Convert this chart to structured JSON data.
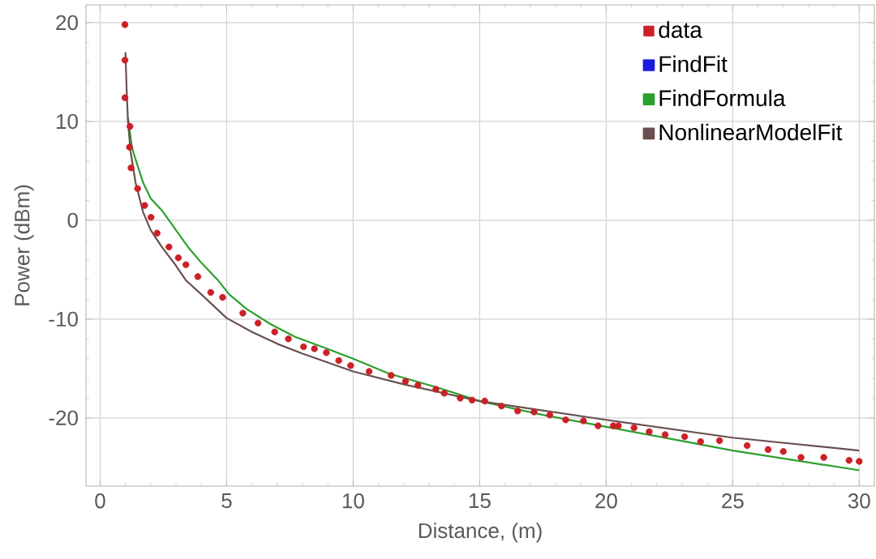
{
  "chart_data": {
    "type": "scatter",
    "xlabel": "Distance, (m)",
    "ylabel": "Power (dBm)",
    "xlim": [
      -0.56,
      30.6
    ],
    "ylim": [
      -26.9,
      21.8
    ],
    "xticks": [
      0,
      5,
      10,
      15,
      20,
      25,
      30
    ],
    "yticks": [
      -20,
      -10,
      0,
      10,
      20
    ],
    "grid": true,
    "legend": "top right",
    "series": [
      {
        "name": "data",
        "marker": "circle",
        "color": "#cc2027",
        "x": [
          0.98,
          0.98,
          0.98,
          1.16,
          1.18,
          1.22,
          1.48,
          1.76,
          2.01,
          2.25,
          2.72,
          3.09,
          3.39,
          3.86,
          4.37,
          4.84,
          5.64,
          6.24,
          6.9,
          7.44,
          8.04,
          8.47,
          8.94,
          9.43,
          9.9,
          10.63,
          11.5,
          12.07,
          12.56,
          13.27,
          13.6,
          14.23,
          14.7,
          15.2,
          15.86,
          16.5,
          17.15,
          17.77,
          18.4,
          19.1,
          19.68,
          20.28,
          20.48,
          21.1,
          21.7,
          22.33,
          23.1,
          23.73,
          24.48,
          25.57,
          26.4,
          27.0,
          27.7,
          28.6,
          29.6,
          30.0
        ],
        "values": [
          19.8,
          16.2,
          12.4,
          7.4,
          9.5,
          5.3,
          3.2,
          1.5,
          0.3,
          -1.3,
          -2.7,
          -3.8,
          -4.5,
          -5.7,
          -7.3,
          -7.8,
          -9.4,
          -10.4,
          -11.3,
          -12.0,
          -12.8,
          -13.0,
          -13.4,
          -14.2,
          -14.7,
          -15.3,
          -15.7,
          -16.3,
          -16.7,
          -17.1,
          -17.5,
          -18.0,
          -18.2,
          -18.3,
          -18.8,
          -19.3,
          -19.4,
          -19.7,
          -20.2,
          -20.3,
          -20.8,
          -20.8,
          -20.8,
          -21.0,
          -21.4,
          -21.7,
          -21.9,
          -22.4,
          -22.3,
          -22.8,
          -23.2,
          -23.4,
          -24.0,
          -24.0,
          -24.3,
          -24.4
        ]
      },
      {
        "name": "FindFit",
        "type": "line",
        "marker": "none",
        "color": "#1a1ae0"
      },
      {
        "name": "FindFormula",
        "type": "line",
        "marker": "none",
        "color": "#2ca02c",
        "x": [
          1.1,
          1.25,
          1.37,
          1.7,
          2.0,
          2.44,
          3.0,
          3.5,
          4.0,
          4.67,
          5.1,
          5.8,
          6.73,
          7.7,
          8.87,
          10.0,
          11.4,
          13.3,
          15,
          17.5,
          20,
          22.5,
          25,
          27.5,
          30
        ],
        "values": [
          10.4,
          7.5,
          6.4,
          3.8,
          2.2,
          1.0,
          -1.0,
          -2.8,
          -4.3,
          -6.1,
          -7.5,
          -9.0,
          -10.5,
          -11.8,
          -12.9,
          -14.0,
          -15.5,
          -16.9,
          -18.3,
          -19.7,
          -20.9,
          -22.1,
          -23.3,
          -24.3,
          -25.3
        ]
      },
      {
        "name": "NonlinearModelFit",
        "type": "line",
        "marker": "none",
        "color": "#6b5050",
        "x": [
          1,
          1.05,
          1.1,
          1.2,
          1.4,
          1.7,
          2.0,
          2.44,
          3.0,
          3.4,
          4.0,
          5.0,
          6.0,
          7.0,
          8.0,
          10.0,
          12.0,
          15.0,
          20.0,
          25.0,
          30.0
        ],
        "values": [
          17.0,
          13.0,
          10.0,
          7.0,
          3.8,
          0.8,
          -1.0,
          -2.7,
          -4.6,
          -6.1,
          -7.5,
          -9.9,
          -11.3,
          -12.5,
          -13.5,
          -15.3,
          -16.6,
          -18.3,
          -20.2,
          -22.0,
          -23.3
        ]
      }
    ]
  }
}
